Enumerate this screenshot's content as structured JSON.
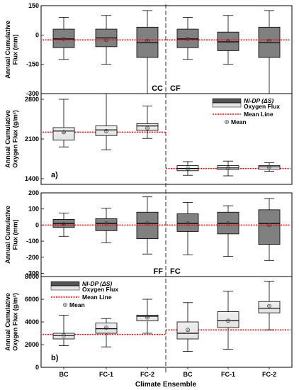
{
  "chart_data": [
    {
      "type": "box",
      "panel": 1,
      "ylabel": "Annual Cumulative Flux (mm)",
      "ylim": [
        -300,
        150
      ],
      "yticks": [
        150,
        0,
        -150,
        -300
      ],
      "mean_line": -25,
      "labels": [
        "CC",
        "CF"
      ],
      "boxes": [
        {
          "category": "BC",
          "group": "CC",
          "whisker_low": -125,
          "q1": -65,
          "median": -20,
          "q3": 30,
          "whisker_high": 90,
          "mean": -20
        },
        {
          "category": "FC-1",
          "group": "CC",
          "whisker_low": -150,
          "q1": -60,
          "median": -15,
          "q3": 30,
          "whisker_high": 100,
          "mean": -25
        },
        {
          "category": "FC-2",
          "group": "CC",
          "whisker_low": -300,
          "q1": -115,
          "median": -40,
          "q3": 40,
          "whisker_high": 125,
          "mean": -30
        },
        {
          "category": "BC",
          "group": "CF",
          "whisker_low": -125,
          "q1": -65,
          "median": -20,
          "q3": 30,
          "whisker_high": 90,
          "mean": -20
        },
        {
          "category": "FC-1",
          "group": "CF",
          "whisker_low": -150,
          "q1": -80,
          "median": -35,
          "q3": 15,
          "whisker_high": 100,
          "mean": -30
        },
        {
          "category": "FC-2",
          "group": "CF",
          "whisker_low": -300,
          "q1": -115,
          "median": -40,
          "q3": 40,
          "whisker_high": 125,
          "mean": -30
        }
      ]
    },
    {
      "type": "box",
      "panel": 2,
      "ylabel": "Annual Cumulative Oxygen Flux (g/m²)",
      "ylim": [
        1300,
        2900
      ],
      "yticks": [
        2800,
        2100,
        1400
      ],
      "mean_line": 2220,
      "mean_line_right": 1580,
      "panel_label": "a)",
      "legend": [
        "NI-DP (ΔS)",
        "Oxygen Flux",
        "Mean Line",
        "Mean"
      ],
      "boxes": [
        {
          "category": "BC",
          "group": "CC",
          "whisker_low": 1960,
          "q1": 2080,
          "median": 2240,
          "q3": 2300,
          "whisker_high": 2800,
          "mean": 2220
        },
        {
          "category": "FC-1",
          "group": "CC",
          "whisker_low": 1910,
          "q1": 2160,
          "median": 2260,
          "q3": 2330,
          "whisker_high": 2900,
          "mean": 2240
        },
        {
          "category": "FC-2",
          "group": "CC",
          "whisker_low": 2110,
          "q1": 2250,
          "median": 2330,
          "q3": 2370,
          "whisker_high": 2680,
          "mean": 2290
        },
        {
          "category": "BC",
          "group": "CF",
          "whisker_low": 1460,
          "q1": 1540,
          "median": 1580,
          "q3": 1630,
          "whisker_high": 1700,
          "mean": 1580
        },
        {
          "category": "FC-1",
          "group": "CF",
          "whisker_low": 1450,
          "q1": 1560,
          "median": 1590,
          "q3": 1630,
          "whisker_high": 1710,
          "mean": 1585
        },
        {
          "category": "FC-2",
          "group": "CF",
          "whisker_low": 1530,
          "q1": 1570,
          "median": 1610,
          "q3": 1630,
          "whisker_high": 1680,
          "mean": 1600
        }
      ]
    },
    {
      "type": "box",
      "panel": 3,
      "ylabel": "Annual Cumulative Flux (mm)",
      "ylim": [
        -320,
        200
      ],
      "yticks": [
        200,
        100,
        0,
        -100,
        -200,
        -300
      ],
      "mean_line": 0,
      "labels": [
        "FF",
        "FC"
      ],
      "boxes": [
        {
          "category": "BC",
          "group": "FF",
          "whisker_low": -70,
          "q1": -15,
          "median": 10,
          "q3": 35,
          "whisker_high": 75,
          "mean": 5
        },
        {
          "category": "FC-1",
          "group": "FF",
          "whisker_low": -110,
          "q1": -35,
          "median": 10,
          "q3": 40,
          "whisker_high": 105,
          "mean": 10
        },
        {
          "category": "FC-2",
          "group": "FF",
          "whisker_low": -180,
          "q1": -85,
          "median": 10,
          "q3": 80,
          "whisker_high": 175,
          "mean": 10
        },
        {
          "category": "BC",
          "group": "FC",
          "whisker_low": -185,
          "q1": -40,
          "median": 10,
          "q3": 70,
          "whisker_high": 140,
          "mean": 10
        },
        {
          "category": "FC-1",
          "group": "FC",
          "whisker_low": -195,
          "q1": -55,
          "median": 10,
          "q3": 80,
          "whisker_high": 120,
          "mean": 10
        },
        {
          "category": "FC-2",
          "group": "FC",
          "whisker_low": -220,
          "q1": -120,
          "median": 10,
          "q3": 95,
          "whisker_high": 165,
          "mean": 0
        }
      ]
    },
    {
      "type": "box",
      "panel": 4,
      "ylabel": "Annual Cumulative Oxygen Flux (g/m²)",
      "ylim": [
        0,
        8000
      ],
      "yticks": [
        8000,
        6000,
        4000,
        2000,
        0
      ],
      "mean_line": 2900,
      "mean_line_right": 3300,
      "panel_label": "b)",
      "legend": [
        "NI-DP (ΔS)",
        "Oxygen Flux",
        "Mean Line",
        "Mean"
      ],
      "boxes": [
        {
          "category": "BC",
          "group": "FF",
          "whisker_low": 1900,
          "q1": 2500,
          "median": 2800,
          "q3": 3000,
          "whisker_high": 4600,
          "mean": 2800
        },
        {
          "category": "FC-1",
          "group": "FF",
          "whisker_low": 1800,
          "q1": 3000,
          "median": 3400,
          "q3": 3900,
          "whisker_high": 4300,
          "mean": 3500
        },
        {
          "category": "FC-2",
          "group": "FF",
          "whisker_low": 3000,
          "q1": 4100,
          "median": 4500,
          "q3": 4600,
          "whisker_high": 6000,
          "mean": 4400
        },
        {
          "category": "BC",
          "group": "FC",
          "whisker_low": 1400,
          "q1": 2500,
          "median": 3000,
          "q3": 4000,
          "whisker_high": 5700,
          "mean": 3300
        },
        {
          "category": "FC-1",
          "group": "FC",
          "whisker_low": 1600,
          "q1": 3500,
          "median": 4100,
          "q3": 4900,
          "whisker_high": 6700,
          "mean": 4100
        },
        {
          "category": "FC-2",
          "group": "FC",
          "whisker_low": 3300,
          "q1": 4800,
          "median": 5200,
          "q3": 5800,
          "whisker_high": 7600,
          "mean": 5400
        }
      ]
    }
  ],
  "xaxis": {
    "title": "Climate Ensemble",
    "categories": [
      "BC",
      "FC-1",
      "FC-2",
      "BC",
      "FC-1",
      "FC-2"
    ]
  },
  "colors": {
    "flux_box": "#808080",
    "oxygen_box_top": "#f0f0f0",
    "oxygen_box_bottom": "#e2e2e2",
    "mean_line": "#ff0000",
    "legend_dark": "#555555",
    "legend_light": "#e6e6e6"
  }
}
